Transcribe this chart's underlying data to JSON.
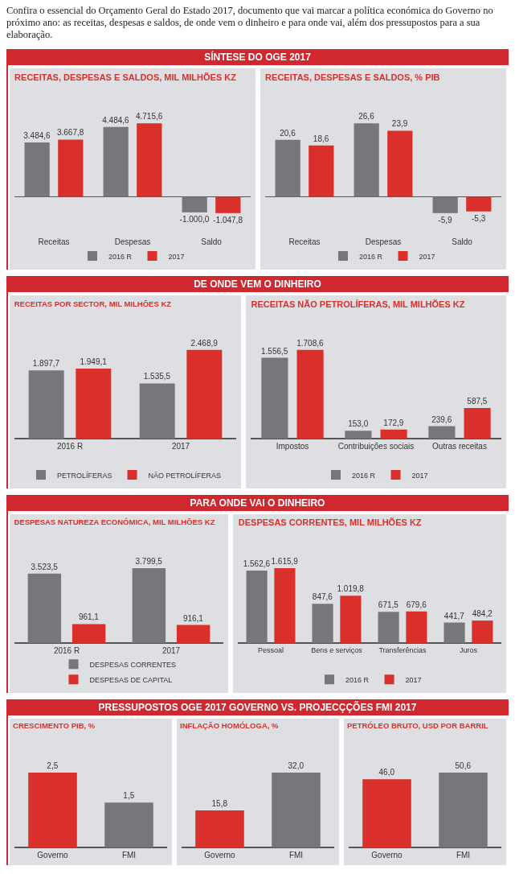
{
  "chart_data": [
    {
      "type": "other",
      "title": "SÍNTESE DO OGE 2017",
      "annotations": [
        "Confira o essencial do Orçamento Geral do Estado 2017, documento que vai marcar a política económica do Governo no próximo ano: as receitas, despesas e saldos, de onde vem o dinheiro e para onde vai, além dos pressupostos para a sua elaboração."
      ]
    },
    {
      "type": "bar",
      "title": "RECEITAS, DESPESAS E SALDOS, MIL MILHÕES KZ",
      "categories": [
        "Receitas",
        "Despesas",
        "Saldo"
      ],
      "legend": "bottom",
      "series": [
        {
          "name": "2016 R",
          "color": "#76777b",
          "values": [
            3484.6,
            4484.6,
            -1000.0
          ],
          "value_labels": [
            "3.484,6",
            "4.484,6",
            "-1.000,0"
          ]
        },
        {
          "name": "2017",
          "color": "#d9302c",
          "values": [
            3667.8,
            4715.6,
            -1047.8
          ],
          "value_labels": [
            "3.667,8",
            "4.715,6",
            "-1.047,8"
          ]
        }
      ]
    },
    {
      "type": "bar",
      "title": "RECEITAS, DESPESAS E SALDOS, % PIB",
      "categories": [
        "Receitas",
        "Despesas",
        "Saldo"
      ],
      "legend": "bottom",
      "series": [
        {
          "name": "2016 R",
          "color": "#76777b",
          "values": [
            20.6,
            26.6,
            -5.9
          ],
          "value_labels": [
            "20,6",
            "26,6",
            "-5,9"
          ]
        },
        {
          "name": "2017",
          "color": "#d9302c",
          "values": [
            18.6,
            23.9,
            -5.3
          ],
          "value_labels": [
            "18,6",
            "23,9",
            "-5,3"
          ]
        }
      ]
    },
    {
      "type": "other",
      "title": "DE ONDE VEM O DINHEIRO"
    },
    {
      "type": "bar",
      "title": "RECEITAS POR SECTOR, MIL MILHÕES KZ",
      "categories": [
        "2016 R",
        "2017"
      ],
      "legend": "bottom",
      "series": [
        {
          "name": "PETROLÍFERAS",
          "color": "#76777b",
          "values": [
            1897.7,
            1535.5
          ],
          "value_labels": [
            "1.897,7",
            "1.535,5"
          ]
        },
        {
          "name": "NÃO PETROLÍFERAS",
          "color": "#d9302c",
          "values": [
            1949.1,
            2468.9
          ],
          "value_labels": [
            "1.949,1",
            "2.468,9"
          ]
        }
      ]
    },
    {
      "type": "bar",
      "title": "RECEITAS NÃO PETROLÍFERAS, MIL MILHÕES KZ",
      "categories": [
        "Impostos",
        "Contribuições sociais",
        "Outras receitas"
      ],
      "legend": "bottom",
      "series": [
        {
          "name": "2016 R",
          "color": "#76777b",
          "values": [
            1556.5,
            153.0,
            239.6
          ],
          "value_labels": [
            "1.556,5",
            "153,0",
            "239,6"
          ]
        },
        {
          "name": "2017",
          "color": "#d9302c",
          "values": [
            1708.6,
            172.9,
            587.5
          ],
          "value_labels": [
            "1.708,6",
            "172,9",
            "587,5"
          ]
        }
      ]
    },
    {
      "type": "other",
      "title": "PARA ONDE VAI O DINHEIRO"
    },
    {
      "type": "bar",
      "title": "DESPESAS NATUREZA ECONÓMICA, MIL MILHÕES KZ",
      "categories": [
        "2016 R",
        "2017"
      ],
      "legend": "bottom",
      "series": [
        {
          "name": "DESPESAS CORRENTES",
          "color": "#76777b",
          "values": [
            3523.5,
            3799.5
          ],
          "value_labels": [
            "3.523,5",
            "3.799,5"
          ]
        },
        {
          "name": "DESPESAS DE CAPITAL",
          "color": "#d9302c",
          "values": [
            961.1,
            916.1
          ],
          "value_labels": [
            "961,1",
            "916,1"
          ]
        }
      ]
    },
    {
      "type": "bar",
      "title": "DESPESAS CORRENTES, MIL MILHÕES KZ",
      "categories": [
        "Pessoal",
        "Bens e serviços",
        "Transferências",
        "Juros"
      ],
      "legend": "bottom",
      "series": [
        {
          "name": "2016 R",
          "color": "#76777b",
          "values": [
            1562.6,
            847.6,
            671.5,
            441.7
          ],
          "value_labels": [
            "1.562,6",
            "847,6",
            "671,5",
            "441,7"
          ]
        },
        {
          "name": "2017",
          "color": "#d9302c",
          "values": [
            1615.9,
            1019.8,
            679.6,
            484.2
          ],
          "value_labels": [
            "1.615,9",
            "1.019,8",
            "679,6",
            "484,2"
          ]
        }
      ]
    },
    {
      "type": "other",
      "title": "PRESSUPOSTOS OGE 2017 GOVERNO VS. PROJECÇÇÕES FMI 2017"
    },
    {
      "type": "bar",
      "title": "CRESCIMENTO PIB, %",
      "categories": [
        "Governo",
        "FMI"
      ],
      "colors": [
        "#d9302c",
        "#76777b"
      ],
      "values": [
        2.5,
        1.5
      ],
      "value_labels": [
        "2,5",
        "1,5"
      ]
    },
    {
      "type": "bar",
      "title": "INFLAÇÃO HOMÓLOGA, %",
      "categories": [
        "Governo",
        "FMI"
      ],
      "colors": [
        "#d9302c",
        "#76777b"
      ],
      "values": [
        15.8,
        32.0
      ],
      "value_labels": [
        "15,8",
        "32,0"
      ]
    },
    {
      "type": "bar",
      "title": "PETRÓLEO BRUTO, USD POR BARRIL",
      "categories": [
        "Governo",
        "FMI"
      ],
      "colors": [
        "#d9302c",
        "#76777b"
      ],
      "values": [
        46.0,
        50.6
      ],
      "value_labels": [
        "46,0",
        "50,6"
      ]
    }
  ]
}
